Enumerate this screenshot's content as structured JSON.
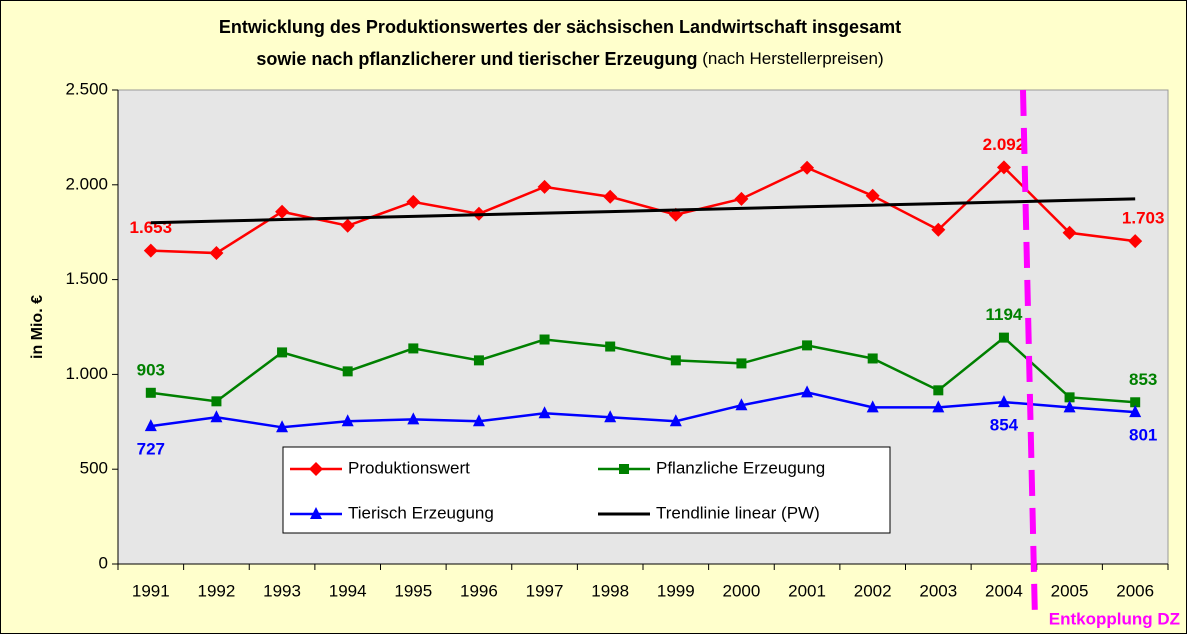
{
  "chart_data": {
    "type": "line",
    "title": "Entwicklung des Produktionswertes der sächsischen Landwirtschaft insgesamt",
    "title_line2": "sowie nach pflanzlicherer und tierischer Erzeugung",
    "subtitle": "(nach Herstellerpreisen)",
    "y_label": "in Mio. €",
    "annotation": "Entkopplung DZ",
    "annotation_color": "#ff00ff",
    "categories": [
      "1991",
      "1992",
      "1993",
      "1994",
      "1995",
      "1996",
      "1997",
      "1998",
      "1999",
      "2000",
      "2001",
      "2002",
      "2003",
      "2004",
      "2005",
      "2006"
    ],
    "ylim": [
      0,
      2500
    ],
    "yticks": [
      0,
      500,
      {
        "value": 1000,
        "label": "1.000"
      },
      {
        "value": 1500,
        "label": "1.500"
      },
      {
        "value": 2000,
        "label": "2.000"
      },
      {
        "value": 2500,
        "label": "2.500"
      }
    ],
    "grid": false,
    "series": [
      {
        "name": "Produktionswert",
        "color": "#ff0000",
        "marker": "diamond",
        "values": [
          1653,
          1640,
          1858,
          1784,
          1910,
          1847,
          1989,
          1937,
          1842,
          1926,
          2090,
          1942,
          1763,
          2092,
          1747,
          1703
        ],
        "value_labels": [
          "1.653",
          null,
          null,
          null,
          null,
          null,
          null,
          null,
          null,
          null,
          null,
          null,
          null,
          "2.092",
          null,
          "1.703"
        ]
      },
      {
        "name": "Pflanzliche Erzeugung",
        "color": "#008000",
        "marker": "square",
        "values": [
          903,
          858,
          1116,
          1016,
          1137,
          1074,
          1184,
          1147,
          1074,
          1058,
          1153,
          1084,
          916,
          1194,
          879,
          853
        ],
        "value_labels": [
          "903",
          null,
          null,
          null,
          null,
          null,
          null,
          null,
          null,
          null,
          null,
          null,
          null,
          "1194",
          null,
          "853"
        ]
      },
      {
        "name": "Tierisch Erzeugung",
        "color": "#0000ff",
        "marker": "triangle",
        "values": [
          727,
          774,
          721,
          753,
          763,
          753,
          795,
          774,
          753,
          837,
          905,
          826,
          826,
          854,
          826,
          801
        ],
        "value_labels": [
          "727",
          null,
          null,
          null,
          null,
          null,
          null,
          null,
          null,
          null,
          null,
          null,
          null,
          "854",
          null,
          "801"
        ]
      },
      {
        "name": "Trendlinie linear (PW)",
        "color": "#000000",
        "marker": "none",
        "values": [
          1800,
          1808.4,
          1816.8,
          1825.2,
          1833.6,
          1842,
          1850.4,
          1858.8,
          1867.2,
          1875.6,
          1884,
          1892.4,
          1900.8,
          1909.2,
          1917.6,
          1926
        ]
      }
    ]
  }
}
